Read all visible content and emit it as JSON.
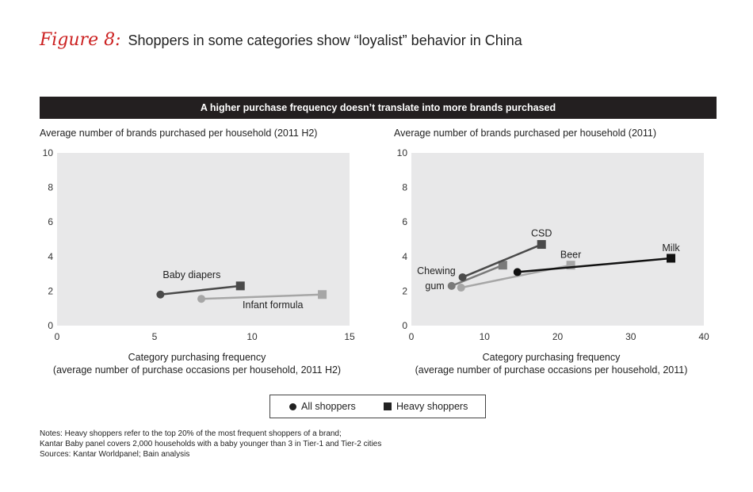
{
  "figure": {
    "number": "Figure 8:",
    "title": "Shoppers in some categories show “loyalist” behavior in China"
  },
  "banner": "A higher purchase frequency doesn’t translate into more brands purchased",
  "legend": {
    "all_shoppers": "All shoppers",
    "heavy_shoppers": "Heavy shoppers"
  },
  "notes": [
    "Notes: Heavy shoppers refer to the top 20% of the most frequent shoppers of a brand;",
    "Kantar Baby panel covers 2,000 households with a baby younger than 3 in Tier-1 and Tier-2 cities",
    "Sources: Kantar Worldpanel; Bain analysis"
  ],
  "colors": {
    "plot_bg": "#e8e8e9",
    "dark_series": "#4a4a4a",
    "mid_series": "#7a7a7a",
    "light_series": "#a6a6a6",
    "black_series": "#111111"
  },
  "chart_data": [
    {
      "type": "scatter",
      "ylabel": "Average number of brands purchased per household (2011 H2)",
      "xlabel": "Category purchasing frequency",
      "xlabel2": "(average number of purchase occasions per household, 2011 H2)",
      "xlim": [
        0,
        15
      ],
      "ylim": [
        0,
        10
      ],
      "xticks": [
        "0",
        "5",
        "10",
        "15"
      ],
      "yticks": [
        "0",
        "2",
        "4",
        "6",
        "8",
        "10"
      ],
      "series": [
        {
          "name": "Baby diapers",
          "color": "#4a4a4a",
          "label_anchor": "start",
          "all": [
            5.3,
            1.8
          ],
          "heavy": [
            9.4,
            2.3
          ]
        },
        {
          "name": "Infant formula",
          "color": "#a6a6a6",
          "label_anchor": "start",
          "all": [
            7.4,
            1.55
          ],
          "heavy": [
            13.6,
            1.8
          ]
        }
      ]
    },
    {
      "type": "scatter",
      "ylabel": "Average number of brands purchased per household (2011)",
      "xlabel": "Category purchasing frequency",
      "xlabel2": "(average number of purchase occasions per household, 2011)",
      "xlim": [
        0,
        40
      ],
      "ylim": [
        0,
        10
      ],
      "xticks": [
        "0",
        "10",
        "20",
        "30",
        "40"
      ],
      "yticks": [
        "0",
        "2",
        "4",
        "6",
        "8",
        "10"
      ],
      "series": [
        {
          "name": "Chewing gum",
          "label_lines": [
            "Chewing",
            "gum"
          ],
          "color": "#7a7a7a",
          "label_anchor": "end",
          "all": [
            5.5,
            2.3
          ],
          "heavy": [
            12.5,
            3.5
          ]
        },
        {
          "name": "CSD",
          "color": "#4a4a4a",
          "label_anchor": "middle",
          "all": [
            7.0,
            2.8
          ],
          "heavy": [
            17.8,
            4.7
          ]
        },
        {
          "name": "Beer",
          "color": "#a6a6a6",
          "label_anchor": "middle",
          "all": [
            6.8,
            2.2
          ],
          "heavy": [
            21.8,
            3.5
          ]
        },
        {
          "name": "Milk",
          "color": "#111111",
          "label_anchor": "middle",
          "all": [
            14.5,
            3.1
          ],
          "heavy": [
            35.5,
            3.9
          ]
        }
      ]
    }
  ]
}
